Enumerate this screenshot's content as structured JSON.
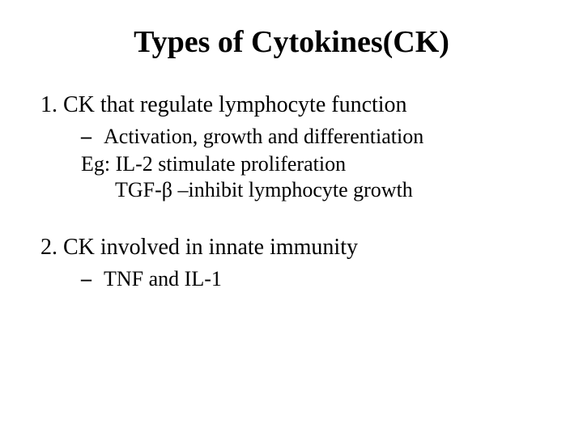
{
  "title": "Types of Cytokines(CK)",
  "item1": {
    "number": "1.",
    "text": "CK that regulate lymphocyte function",
    "bullet_dash": "–",
    "bullet_text": "Activation, growth and differentiation",
    "eg_line": "Eg: IL-2 stimulate proliferation",
    "tgf_line": "TGF-β –inhibit lymphocyte growth"
  },
  "item2": {
    "number": "2.",
    "text": "CK involved in innate immunity",
    "bullet_dash": "–",
    "bullet_text": "TNF and IL-1"
  }
}
